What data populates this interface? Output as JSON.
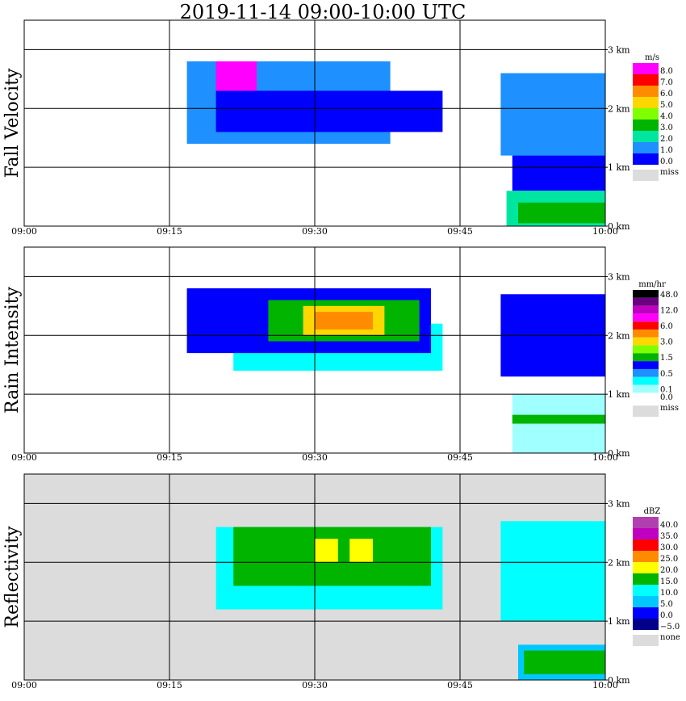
{
  "title": "2019-11-14   09:00-10:00 UTC",
  "chart_data": [
    {
      "type": "heatmap",
      "ylabel": "Fall Velocity",
      "x_ticks": [
        "09:00",
        "09:15",
        "09:30",
        "09:45",
        "10:00"
      ],
      "y_ticks": [
        "0 km",
        "1 km",
        "2 km",
        "3 km"
      ],
      "ylim_km": [
        0,
        3.5
      ],
      "grid": true,
      "missing_background": false,
      "legend": {
        "unit": "m/s",
        "entries": [
          {
            "label": "8.0",
            "color": "#ff00ff"
          },
          {
            "label": "7.0",
            "color": "#ff0000"
          },
          {
            "label": "6.0",
            "color": "#ff8c00"
          },
          {
            "label": "5.0",
            "color": "#ffd700"
          },
          {
            "label": "4.0",
            "color": "#7fff00"
          },
          {
            "label": "3.0",
            "color": "#00b400"
          },
          {
            "label": "2.0",
            "color": "#00e6a0"
          },
          {
            "label": "1.0",
            "color": "#1e90ff"
          },
          {
            "label": "0.0",
            "color": "#0000ff"
          }
        ],
        "missing": {
          "label": "miss",
          "color": "#dcdcdc"
        }
      },
      "regions": [
        {
          "t": [
            0.28,
            0.63
          ],
          "h": [
            1.4,
            2.8
          ],
          "color": "#1e90ff"
        },
        {
          "t": [
            0.33,
            0.72
          ],
          "h": [
            1.6,
            2.3
          ],
          "color": "#0000ff"
        },
        {
          "t": [
            0.82,
            1.0
          ],
          "h": [
            1.2,
            2.6
          ],
          "color": "#1e90ff"
        },
        {
          "t": [
            0.84,
            1.0
          ],
          "h": [
            0.6,
            1.2
          ],
          "color": "#0000ff"
        },
        {
          "t": [
            0.83,
            1.0
          ],
          "h": [
            0.0,
            0.6
          ],
          "color": "#00e6a0"
        },
        {
          "t": [
            0.85,
            1.0
          ],
          "h": [
            0.05,
            0.4
          ],
          "color": "#00b400"
        },
        {
          "t": [
            0.33,
            0.4
          ],
          "h": [
            2.3,
            2.8
          ],
          "color": "#ff00ff"
        }
      ]
    },
    {
      "type": "heatmap",
      "ylabel": "Rain Intensity",
      "x_ticks": [
        "09:00",
        "09:15",
        "09:30",
        "09:45",
        "10:00"
      ],
      "y_ticks": [
        "0 km",
        "1 km",
        "2 km",
        "3 km"
      ],
      "ylim_km": [
        0,
        3.5
      ],
      "grid": true,
      "missing_background": false,
      "legend": {
        "unit": "mm/hr",
        "entries": [
          {
            "label": "48.0",
            "color": "#000000"
          },
          {
            "label": "",
            "color": "#6a0080"
          },
          {
            "label": "12.0",
            "color": "#c000c0"
          },
          {
            "label": "",
            "color": "#ff00ff"
          },
          {
            "label": "6.0",
            "color": "#ff0000"
          },
          {
            "label": "",
            "color": "#ff8c00"
          },
          {
            "label": "3.0",
            "color": "#ffd700"
          },
          {
            "label": "",
            "color": "#7fff00"
          },
          {
            "label": "1.5",
            "color": "#00b400"
          },
          {
            "label": "",
            "color": "#0000ff"
          },
          {
            "label": "0.5",
            "color": "#1e90ff"
          },
          {
            "label": "",
            "color": "#00ffff"
          },
          {
            "label": "0.1",
            "color": "#a0ffff"
          },
          {
            "label": "0.0",
            "color": "#ffffff"
          }
        ],
        "missing": {
          "label": "miss",
          "color": "#dcdcdc"
        }
      },
      "regions": [
        {
          "t": [
            0.36,
            0.72
          ],
          "h": [
            1.4,
            2.2
          ],
          "color": "#00ffff"
        },
        {
          "t": [
            0.28,
            0.7
          ],
          "h": [
            1.7,
            2.8
          ],
          "color": "#0000ff"
        },
        {
          "t": [
            0.42,
            0.68
          ],
          "h": [
            1.9,
            2.6
          ],
          "color": "#00b400"
        },
        {
          "t": [
            0.48,
            0.62
          ],
          "h": [
            2.0,
            2.5
          ],
          "color": "#ffd700"
        },
        {
          "t": [
            0.5,
            0.6
          ],
          "h": [
            2.1,
            2.4
          ],
          "color": "#ff8c00"
        },
        {
          "t": [
            0.82,
            1.0
          ],
          "h": [
            1.3,
            2.7
          ],
          "color": "#0000ff"
        },
        {
          "t": [
            0.84,
            1.0
          ],
          "h": [
            0.0,
            1.0
          ],
          "color": "#a0ffff"
        },
        {
          "t": [
            0.84,
            1.0
          ],
          "h": [
            0.5,
            0.65
          ],
          "color": "#00b400"
        }
      ]
    },
    {
      "type": "heatmap",
      "ylabel": "Reflectivity",
      "x_ticks": [
        "09:00",
        "09:15",
        "09:30",
        "09:45",
        "10:00"
      ],
      "y_ticks": [
        "0 km",
        "1 km",
        "2 km",
        "3 km"
      ],
      "ylim_km": [
        0,
        3.5
      ],
      "grid": true,
      "missing_background": true,
      "legend": {
        "unit": "dBZ",
        "entries": [
          {
            "label": "40.0",
            "color": "#b040b0"
          },
          {
            "label": "35.0",
            "color": "#c000c0"
          },
          {
            "label": "30.0",
            "color": "#ff0000"
          },
          {
            "label": "25.0",
            "color": "#ff8c00"
          },
          {
            "label": "20.0",
            "color": "#ffff00"
          },
          {
            "label": "15.0",
            "color": "#00b400"
          },
          {
            "label": "10.0",
            "color": "#00ffff"
          },
          {
            "label": "5.0",
            "color": "#00c8ff"
          },
          {
            "label": "0.0",
            "color": "#0000ff"
          },
          {
            "label": "−5.0",
            "color": "#00008b"
          }
        ],
        "missing": {
          "label": "none",
          "color": "#dcdcdc"
        }
      },
      "regions": [
        {
          "t": [
            0.33,
            0.72
          ],
          "h": [
            1.2,
            2.6
          ],
          "color": "#00ffff"
        },
        {
          "t": [
            0.36,
            0.7
          ],
          "h": [
            1.6,
            2.6
          ],
          "color": "#00b400"
        },
        {
          "t": [
            0.5,
            0.54
          ],
          "h": [
            2.0,
            2.4
          ],
          "color": "#ffff00"
        },
        {
          "t": [
            0.56,
            0.6
          ],
          "h": [
            2.0,
            2.4
          ],
          "color": "#ffff00"
        },
        {
          "t": [
            0.82,
            1.0
          ],
          "h": [
            1.0,
            2.7
          ],
          "color": "#00ffff"
        },
        {
          "t": [
            0.85,
            1.0
          ],
          "h": [
            0.0,
            0.6
          ],
          "color": "#00c8ff"
        },
        {
          "t": [
            0.86,
            1.0
          ],
          "h": [
            0.1,
            0.5
          ],
          "color": "#00b400"
        }
      ]
    }
  ]
}
